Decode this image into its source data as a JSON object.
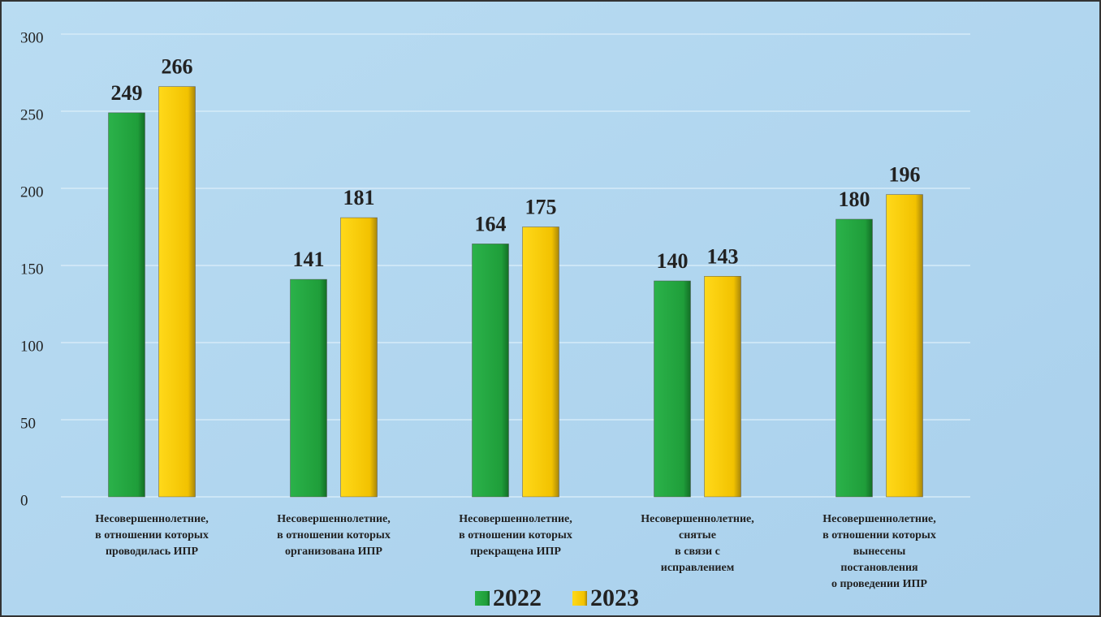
{
  "chart_data": {
    "type": "bar",
    "categories": [
      [
        "Несовершеннолетние,",
        "в отношении которых",
        "проводилась ИПР"
      ],
      [
        "Несовершеннолетние,",
        "в отношении которых",
        "организована ИПР"
      ],
      [
        "Несовершеннолетние,",
        "в отношении которых",
        "прекращена ИПР"
      ],
      [
        "Несовершеннолетние,",
        "снятые",
        "в связи с",
        "исправлением"
      ],
      [
        "Несовершеннолетние,",
        "в отношении которых",
        "вынесены",
        "постановления",
        "о проведении ИПР"
      ]
    ],
    "series": [
      {
        "name": "2022",
        "color": "#1f9e3a",
        "values": [
          249,
          141,
          164,
          140,
          180
        ]
      },
      {
        "name": "2023",
        "color": "#f2c200",
        "values": [
          266,
          181,
          175,
          143,
          196
        ]
      }
    ],
    "ylim": [
      0,
      300
    ],
    "yticks": [
      0,
      50,
      100,
      150,
      200,
      250,
      300
    ],
    "grid": true,
    "legend": "bottom"
  }
}
